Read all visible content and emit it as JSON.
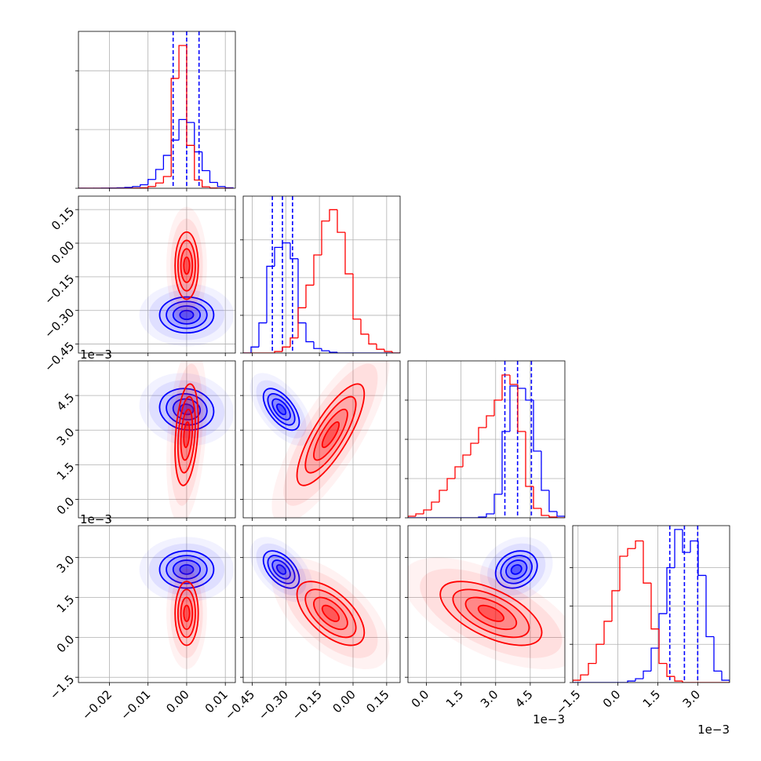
{
  "chart_data": {
    "type": "corner",
    "grid": true,
    "hist_ytick_labels": false,
    "axes": [
      {
        "lim": [
          -0.028,
          0.0126
        ],
        "ticks": [
          {
            "value": -0.02,
            "label": "−0.02"
          },
          {
            "value": -0.01,
            "label": "−0.01"
          },
          {
            "value": 0,
            "label": "0.00"
          },
          0.01
        ],
        "bins": [
          -0.028,
          -0.026,
          -0.024,
          -0.022,
          -0.02,
          -0.018,
          -0.016,
          -0.014,
          -0.012,
          -0.01,
          -0.008,
          -0.006,
          -0.004,
          -0.002,
          0,
          0.002,
          0.004,
          0.006,
          0.008,
          0.01,
          0.012
        ],
        "hist_ylim": [
          0,
          2670
        ],
        "hist_yticks": [
          0,
          1000,
          2000
        ]
      },
      {
        "lim": [
          -0.49,
          0.21
        ],
        "ticks": [
          {
            "value": -0.45,
            "label": "−0.45"
          },
          {
            "value": -0.3,
            "label": "−0.30"
          },
          {
            "value": -0.15,
            "label": "−0.15"
          },
          {
            "value": 0,
            "label": "0.00"
          },
          0.15
        ],
        "bins": [
          -0.49,
          -0.455,
          -0.42,
          -0.385,
          -0.35,
          -0.315,
          -0.28,
          -0.245,
          -0.21,
          -0.175,
          -0.14,
          -0.105,
          -0.07,
          -0.035,
          0,
          0.035,
          0.07,
          0.105,
          0.14,
          0.175,
          0.21
        ],
        "hist_ylim": [
          0,
          208
        ],
        "hist_yticks": [
          0,
          50,
          100,
          150
        ]
      },
      {
        "lim": [
          -0.8,
          6.0
        ],
        "offset": "1e−3",
        "ticks": [
          {
            "value": 0,
            "label": "0.0"
          },
          1.5,
          {
            "value": 3,
            "label": "3.0"
          },
          4.5
        ],
        "bins": [
          -0.8,
          -0.46,
          -0.12,
          0.22,
          0.56,
          0.9,
          1.24,
          1.58,
          1.92,
          2.26,
          2.6,
          2.94,
          3.28,
          3.62,
          3.96,
          4.3,
          4.64,
          4.98,
          5.32,
          5.66,
          6.0
        ],
        "hist_ylim": [
          0,
          200
        ],
        "hist_yticks": [
          0,
          50,
          100,
          150
        ]
      },
      {
        "lim": [
          -1.7,
          4.2
        ],
        "offset": "1e−3",
        "ticks": [
          {
            "value": -1.5,
            "label": "−1.5"
          },
          {
            "value": 0,
            "label": "0.0"
          },
          1.5,
          {
            "value": 3,
            "label": "3.0"
          }
        ],
        "bins": [
          -1.7,
          -1.405,
          -1.11,
          -0.815,
          -0.52,
          -0.225,
          0.07,
          0.365,
          0.66,
          0.955,
          1.25,
          1.545,
          1.84,
          2.135,
          2.43,
          2.725,
          3.02,
          3.315,
          3.61,
          3.905,
          4.2
        ],
        "hist_ylim": [
          0,
          205
        ],
        "hist_yticks": [
          0,
          50,
          100,
          150
        ]
      }
    ],
    "series": [
      {
        "color": "#0000ff",
        "mean": [
          0.0,
          -0.32,
          3.9,
          2.55
        ],
        "sd": [
          0.0035,
          0.04,
          0.45,
          0.35
        ],
        "corr": [
          [
            1,
            0,
            -0.1,
            0
          ],
          [
            0,
            1,
            -0.6,
            -0.5
          ],
          [
            -0.1,
            -0.6,
            1,
            0.2
          ],
          [
            0,
            -0.5,
            0.2,
            1
          ]
        ],
        "counts": [
          [
            1,
            1,
            2,
            3,
            5,
            8,
            15,
            30,
            60,
            150,
            320,
            560,
            820,
            1170,
            1120,
            620,
            300,
            100,
            30,
            8
          ],
          [
            0,
            8,
            40,
            115,
            140,
            146,
            125,
            40,
            15,
            6,
            3,
            1,
            0,
            0,
            0,
            0,
            0,
            0,
            0,
            0
          ],
          [
            0,
            0,
            0,
            0,
            0,
            0,
            0,
            0,
            0,
            1,
            5,
            30,
            110,
            168,
            165,
            150,
            85,
            35,
            8,
            2
          ],
          [
            0,
            0,
            0,
            0,
            0,
            0,
            0,
            2,
            5,
            15,
            45,
            90,
            150,
            200,
            170,
            185,
            140,
            60,
            15,
            3
          ]
        ],
        "quantiles": [
          [
            -0.0035,
            0.0,
            0.0032
          ],
          [
            -0.36,
            -0.315,
            -0.27
          ],
          [
            3.4,
            3.95,
            4.55
          ],
          [
            1.95,
            2.5,
            3.0
          ]
        ]
      },
      {
        "color": "#ff0000",
        "mean": [
          0.0,
          -0.1,
          2.8,
          0.9
        ],
        "sd": [
          0.0015,
          0.075,
          1.1,
          0.6
        ],
        "corr": [
          [
            1,
            0,
            0.3,
            0
          ],
          [
            0,
            1,
            0.8,
            -0.6
          ],
          [
            0.3,
            0.8,
            1,
            -0.6
          ],
          [
            0,
            -0.6,
            -0.6,
            1
          ]
        ],
        "counts": [
          [
            0,
            0,
            0,
            0,
            0,
            0,
            0,
            3,
            8,
            30,
            90,
            200,
            1870,
            2430,
            730,
            140,
            25,
            5,
            1,
            0
          ],
          [
            0,
            0,
            0,
            0,
            2,
            8,
            20,
            60,
            90,
            130,
            175,
            190,
            160,
            105,
            45,
            25,
            12,
            5,
            2,
            0
          ],
          [
            2,
            5,
            10,
            20,
            35,
            50,
            65,
            80,
            95,
            115,
            130,
            150,
            182,
            170,
            110,
            40,
            12,
            3,
            1,
            0
          ],
          [
            3,
            10,
            25,
            50,
            80,
            120,
            165,
            175,
            185,
            130,
            70,
            25,
            8,
            2,
            0,
            0,
            0,
            0,
            0,
            0
          ]
        ]
      }
    ]
  }
}
